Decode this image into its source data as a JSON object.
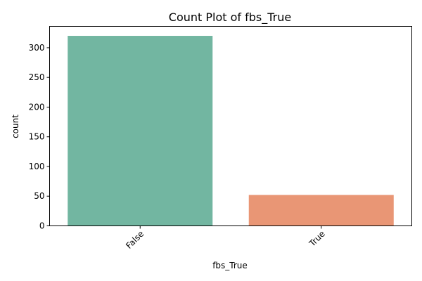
{
  "chart_data": {
    "type": "bar",
    "title": "Count Plot of fbs_True",
    "xlabel": "fbs_True",
    "ylabel": "count",
    "categories": [
      "False",
      "True"
    ],
    "values": [
      320,
      52
    ],
    "colors": [
      "#72b6a1",
      "#e99675"
    ],
    "ylim": [
      0,
      336
    ],
    "yticks": [
      0,
      50,
      100,
      150,
      200,
      250,
      300
    ],
    "grid": false,
    "legend": "none",
    "xtick_rotation": -45
  }
}
